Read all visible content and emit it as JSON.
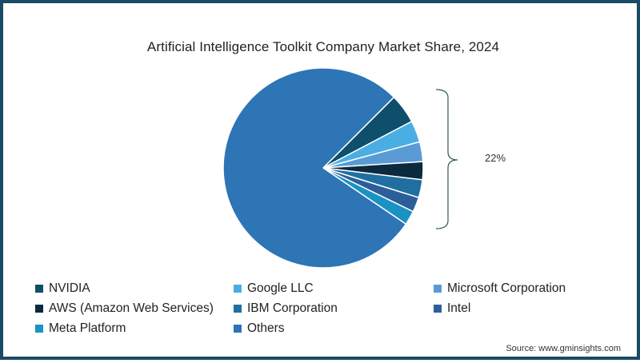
{
  "title": "Artificial Intelligence Toolkit Company Market Share, 2024",
  "bracket_label": "22%",
  "source": "Source: www.gminsights.com",
  "colors": {
    "border": "#1B4A63",
    "bracket": "#2F5F5A",
    "slice_separator": "#ffffff"
  },
  "legend": [
    {
      "label": "NVIDIA",
      "color": "#0E4F6B"
    },
    {
      "label": "Google LLC",
      "color": "#4AAEE3"
    },
    {
      "label": "Microsoft Corporation",
      "color": "#5A9BD5"
    },
    {
      "label": "AWS (Amazon Web Services)",
      "color": "#0B2A3E"
    },
    {
      "label": "IBM Corporation",
      "color": "#1F6FA0"
    },
    {
      "label": "Intel",
      "color": "#2C5F9A"
    },
    {
      "label": "Meta Platform",
      "color": "#1A93C2"
    },
    {
      "label": "Others",
      "color": "#2E75B6"
    }
  ],
  "chart_data": {
    "type": "pie",
    "title": "Artificial Intelligence Toolkit Company Market Share, 2024",
    "categories": [
      "NVIDIA",
      "Google LLC",
      "Microsoft Corporation",
      "AWS (Amazon Web Services)",
      "IBM Corporation",
      "Intel",
      "Meta Platform",
      "Others"
    ],
    "values": [
      4.8,
      3.5,
      3.2,
      2.9,
      2.9,
      2.4,
      2.3,
      78.0
    ],
    "colors": [
      "#0E4F6B",
      "#4AAEE3",
      "#5A9BD5",
      "#0B2A3E",
      "#1F6FA0",
      "#2C5F9A",
      "#1A93C2",
      "#2E75B6"
    ],
    "start_angle_deg": 45,
    "direction": "clockwise",
    "annotations": [
      {
        "text": "22%",
        "spans": [
          "NVIDIA",
          "Google LLC",
          "Microsoft Corporation",
          "AWS (Amazon Web Services)",
          "IBM Corporation",
          "Intel",
          "Meta Platform"
        ],
        "style": "curly-bracket"
      }
    ],
    "legend_position": "bottom",
    "legend_columns": 3,
    "source": "Source: www.gminsights.com"
  }
}
